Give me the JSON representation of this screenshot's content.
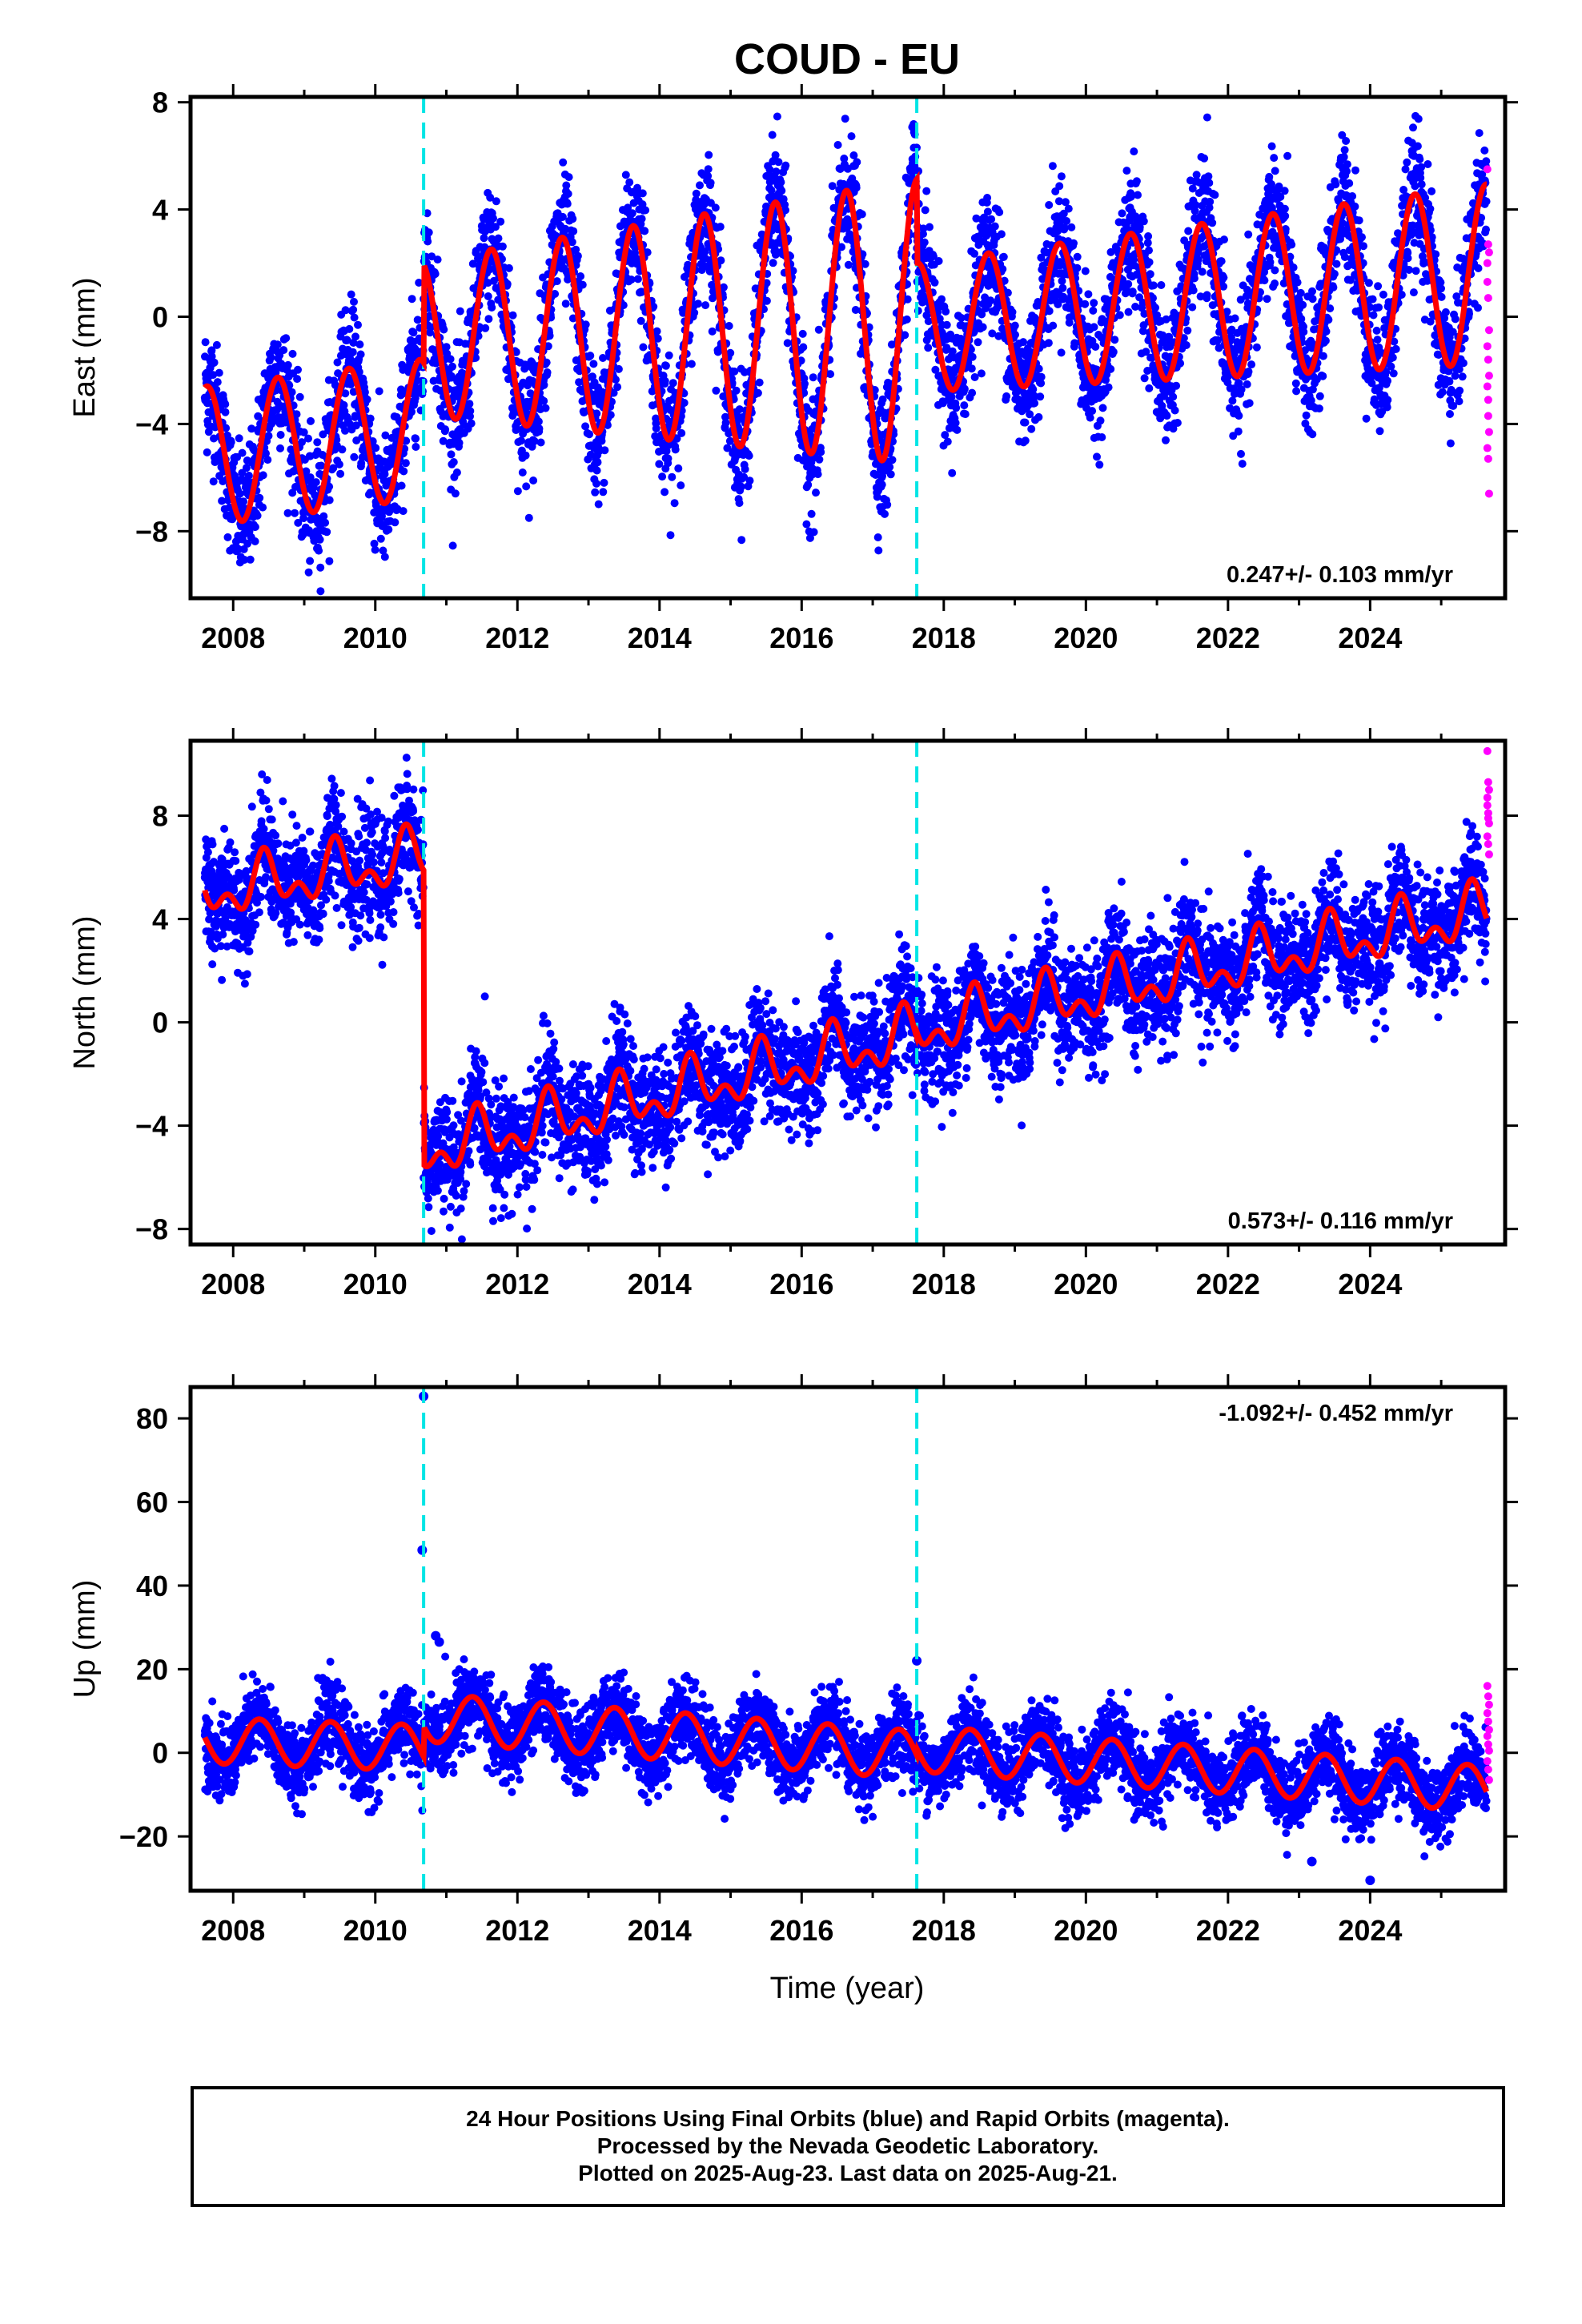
{
  "title": "COUD - EU",
  "xlabel": "Time (year)",
  "caption": [
    "24 Hour Positions Using Final Orbits (blue) and Rapid Orbits (magenta).",
    "Processed by the Nevada Geodetic Laboratory.",
    "Plotted on 2025-Aug-23. Last data on 2025-Aug-21."
  ],
  "colors": {
    "final_orbits": "#0000ff",
    "rapid_orbits": "#ff00ff",
    "model_fit": "#ff0000",
    "offsets": "#00e5e5"
  },
  "chart_data": [
    {
      "type": "scatter",
      "component": "east",
      "ylabel": "East (mm)",
      "xlim": [
        2007.4,
        2025.9
      ],
      "ylim": [
        -10.5,
        8.2
      ],
      "xticks": [
        2008,
        2010,
        2012,
        2014,
        2016,
        2018,
        2020,
        2022,
        2024
      ],
      "yticks": [
        -8,
        -4,
        0,
        4,
        8
      ],
      "ytick_labels": [
        "−8",
        "−4",
        "0",
        "4",
        "8"
      ],
      "rate": "0.247+/- 0.103 mm/yr",
      "rate_position": "bottom-right",
      "offsets": [
        2010.68,
        2017.62
      ],
      "model": {
        "segments": [
          [
            2007.6,
            2010.68
          ],
          [
            2010.68,
            2017.62
          ],
          [
            2017.62,
            2025.64
          ]
        ],
        "levels": [
          -5.2,
          -0.8,
          -0.4
        ],
        "trend": [
          0.33,
          0.09,
          0.247
        ],
        "annual": [
          2.6,
          2.9,
          2.4
        ],
        "amp_growth": [
          0,
          0.12,
          0.05
        ],
        "phase": 0.38
      },
      "scatter_sigma": 1.2,
      "n_points": 5400,
      "rapid_points": [
        5.5,
        2.7,
        2.4,
        1.3,
        0.7,
        -0.5,
        -1.1,
        -1.6,
        -2.2,
        -2.6,
        -3.1,
        -4.3,
        -4.9,
        -5.3,
        -6.6,
        2.0,
        -3.7
      ]
    },
    {
      "type": "scatter",
      "component": "north",
      "ylabel": "North (mm)",
      "xlim": [
        2007.4,
        2025.9
      ],
      "ylim": [
        -8.6,
        10.9
      ],
      "xticks": [
        2008,
        2010,
        2012,
        2014,
        2016,
        2018,
        2020,
        2022,
        2024
      ],
      "yticks": [
        -8,
        -4,
        0,
        4,
        8
      ],
      "ytick_labels": [
        "−8",
        "−4",
        "0",
        "4",
        "8"
      ],
      "rate": "0.573+/- 0.116 mm/yr",
      "rate_position": "bottom-right",
      "offsets": [
        2010.68,
        2017.62
      ],
      "model": {
        "segments": [
          [
            2007.6,
            2010.68
          ],
          [
            2010.68,
            2017.62
          ],
          [
            2017.62,
            2025.64
          ]
        ],
        "levels": [
          5.0,
          -5.0,
          -0.3
        ],
        "trend": [
          0.45,
          0.65,
          0.57
        ],
        "annual": [
          0.8,
          0.8,
          0.8
        ],
        "semiannual": 0.6,
        "amp_growth": [
          0,
          0,
          0
        ],
        "phase": 0.2
      },
      "scatter_sigma": 1.1,
      "n_points": 5400,
      "rapid_points": [
        10.5,
        9.3,
        9.0,
        8.7,
        8.1,
        7.7,
        7.2,
        6.9,
        6.5,
        8.4,
        7.9
      ]
    },
    {
      "type": "scatter",
      "component": "up",
      "ylabel": "Up (mm)",
      "xlim": [
        2007.4,
        2025.9
      ],
      "ylim": [
        -33,
        87.5
      ],
      "xticks": [
        2008,
        2010,
        2012,
        2014,
        2016,
        2018,
        2020,
        2022,
        2024
      ],
      "yticks": [
        -20,
        0,
        20,
        40,
        60,
        80
      ],
      "ytick_labels": [
        "−20",
        "0",
        "20",
        "40",
        "60",
        "80"
      ],
      "rate": "-1.092+/- 0.452 mm/yr",
      "rate_position": "top-right",
      "offsets": [
        2010.68,
        2017.62
      ],
      "model": {
        "segments": [
          [
            2007.6,
            2010.68
          ],
          [
            2010.68,
            2017.62
          ],
          [
            2017.62,
            2025.64
          ]
        ],
        "levels": [
          3.0,
          8.5,
          1.0
        ],
        "trend": [
          -0.6,
          -1.3,
          -1.2
        ],
        "annual": [
          5.5,
          5.8,
          5.5
        ],
        "amp_growth": [
          0,
          0,
          0
        ],
        "phase": 0.12
      },
      "scatter_sigma": 4.5,
      "n_points": 5400,
      "outliers": [
        [
          2010.68,
          85.3
        ],
        [
          2010.66,
          48.5
        ],
        [
          2010.85,
          28.0
        ],
        [
          2010.9,
          26.5
        ],
        [
          2017.62,
          22.0
        ],
        [
          2023.18,
          -26.0
        ],
        [
          2024.0,
          -30.5
        ]
      ],
      "rapid_points": [
        16.0,
        13.5,
        11.5,
        9.5,
        7.5,
        5.5,
        4.0,
        2.0,
        0.5,
        -2.0,
        -4.0,
        -6.5
      ]
    }
  ]
}
